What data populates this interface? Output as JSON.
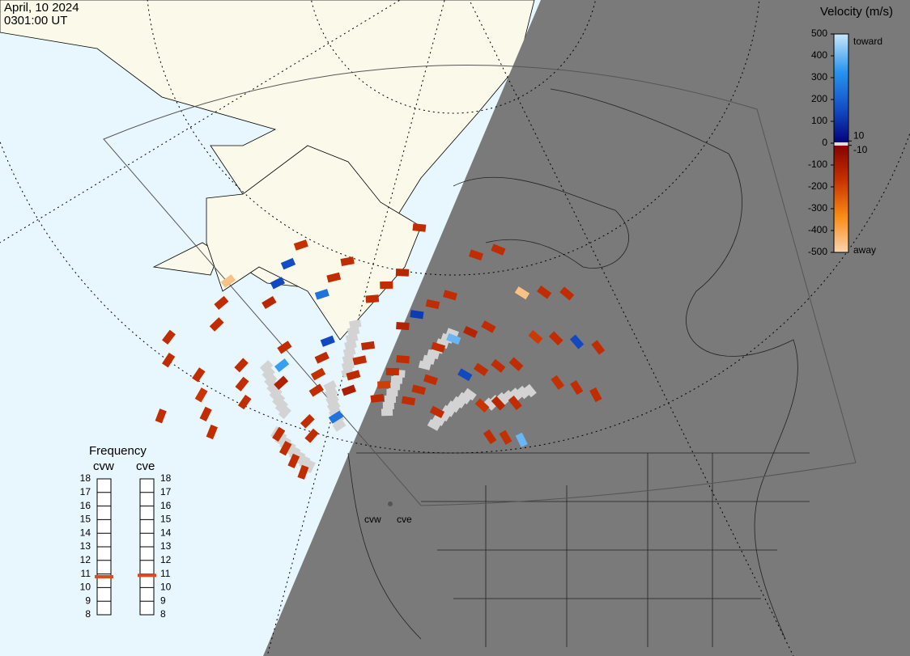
{
  "header": {
    "date": "April, 10 2024",
    "time": "0301:00 UT"
  },
  "colorbar": {
    "title": "Velocity (m/s)",
    "ticks": [
      500,
      400,
      300,
      200,
      100,
      0,
      -100,
      -200,
      -300,
      -400,
      -500
    ],
    "inner_ticks": [
      10,
      -10
    ],
    "top_label": "toward",
    "bottom_label": "away",
    "lim": [
      -500,
      500
    ]
  },
  "frequency": {
    "title": "Frequency",
    "ticks": [
      18,
      17,
      16,
      15,
      14,
      13,
      12,
      11,
      10,
      9,
      8
    ],
    "lim": [
      8,
      18
    ],
    "radars": [
      {
        "name": "cvw",
        "value": 10.8
      },
      {
        "name": "cve",
        "value": 10.9
      }
    ]
  },
  "velocity_cells": [
    -150,
    -150,
    -120,
    -180,
    -150,
    -100,
    -150,
    -160,
    -150,
    -140,
    150,
    -150,
    -130,
    -150,
    -170,
    -150,
    250,
    -150,
    -150,
    -110,
    -150,
    -450,
    -150,
    -160,
    120,
    -150,
    -150,
    -140,
    400,
    -150,
    -150,
    -190,
    -150,
    -150,
    150,
    -150,
    -130,
    -150,
    -150,
    -150,
    -160,
    350,
    -150,
    -150,
    -150,
    -140,
    -150,
    150,
    -150,
    -150,
    -120,
    -150,
    -450,
    -150,
    -150,
    -170,
    160,
    -150,
    -150,
    -150,
    -150,
    -150,
    400,
    -150,
    -130,
    -150,
    -150,
    150,
    -150,
    -150,
    -150,
    -140,
    -150,
    -150,
    250,
    -150,
    -150,
    -150,
    -160,
    -150
  ]
}
